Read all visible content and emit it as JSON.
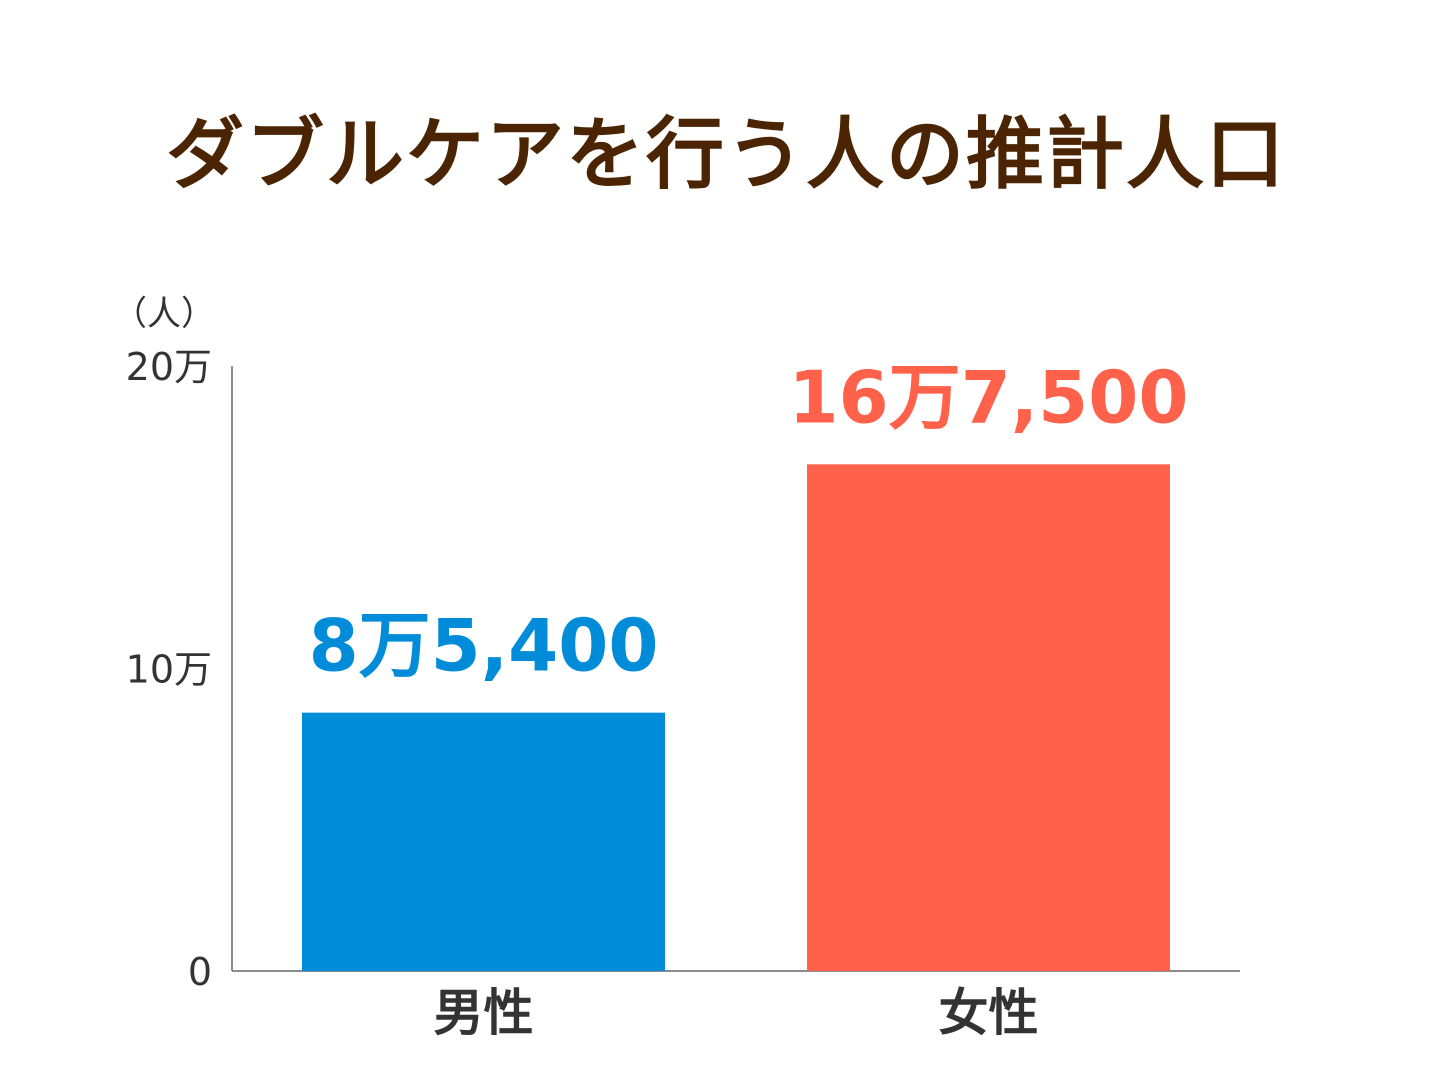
{
  "chart_data": {
    "type": "bar",
    "title": "ダブルケアを行う人の推計人口",
    "unit_label": "（人）",
    "categories": [
      "男性",
      "女性"
    ],
    "values": [
      85400,
      167500
    ],
    "data_labels": [
      "8万5,400",
      "16万7,500"
    ],
    "colors": [
      "#008cd9",
      "#ff614a"
    ],
    "ylim": [
      0,
      200000
    ],
    "yticks": [
      0,
      100000,
      200000
    ],
    "ytick_labels": [
      "0",
      "10万",
      "20万"
    ],
    "xlabel": "",
    "ylabel": "",
    "grid": false
  }
}
